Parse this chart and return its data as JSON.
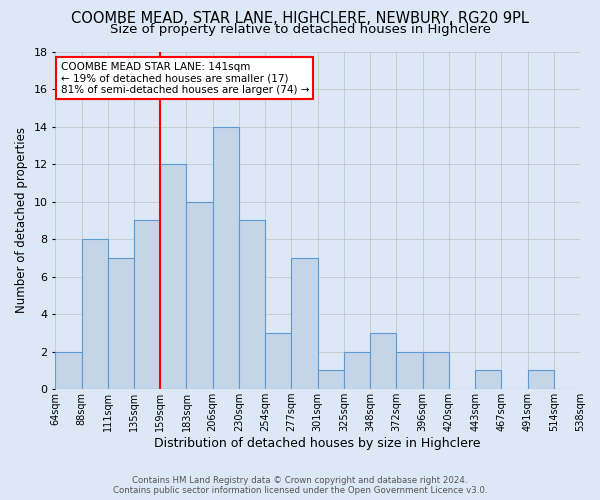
{
  "title": "COOMBE MEAD, STAR LANE, HIGHCLERE, NEWBURY, RG20 9PL",
  "subtitle": "Size of property relative to detached houses in Highclere",
  "xlabel": "Distribution of detached houses by size in Highclere",
  "ylabel": "Number of detached properties",
  "footer1": "Contains HM Land Registry data © Crown copyright and database right 2024.",
  "footer2": "Contains public sector information licensed under the Open Government Licence v3.0.",
  "bin_labels": [
    "64sqm",
    "88sqm",
    "111sqm",
    "135sqm",
    "159sqm",
    "183sqm",
    "206sqm",
    "230sqm",
    "254sqm",
    "277sqm",
    "301sqm",
    "325sqm",
    "348sqm",
    "372sqm",
    "396sqm",
    "420sqm",
    "443sqm",
    "467sqm",
    "491sqm",
    "514sqm",
    "538sqm"
  ],
  "counts": [
    2,
    8,
    7,
    9,
    12,
    10,
    14,
    9,
    3,
    7,
    1,
    2,
    3,
    2,
    2,
    0,
    1,
    0,
    1,
    0
  ],
  "bar_color": "#c5d5e8",
  "bar_edge_color": "#5b9bd5",
  "grid_color": "#c0c0c0",
  "vline_x": 3.5,
  "vline_color": "red",
  "annotation_text": "COOMBE MEAD STAR LANE: 141sqm\n← 19% of detached houses are smaller (17)\n81% of semi-detached houses are larger (74) →",
  "annotation_box_color": "white",
  "annotation_box_edge_color": "red",
  "ylim": [
    0,
    18
  ],
  "yticks": [
    0,
    2,
    4,
    6,
    8,
    10,
    12,
    14,
    16,
    18
  ],
  "bg_color": "#dce8f5",
  "title_fontsize": 10.5,
  "subtitle_fontsize": 9.5
}
